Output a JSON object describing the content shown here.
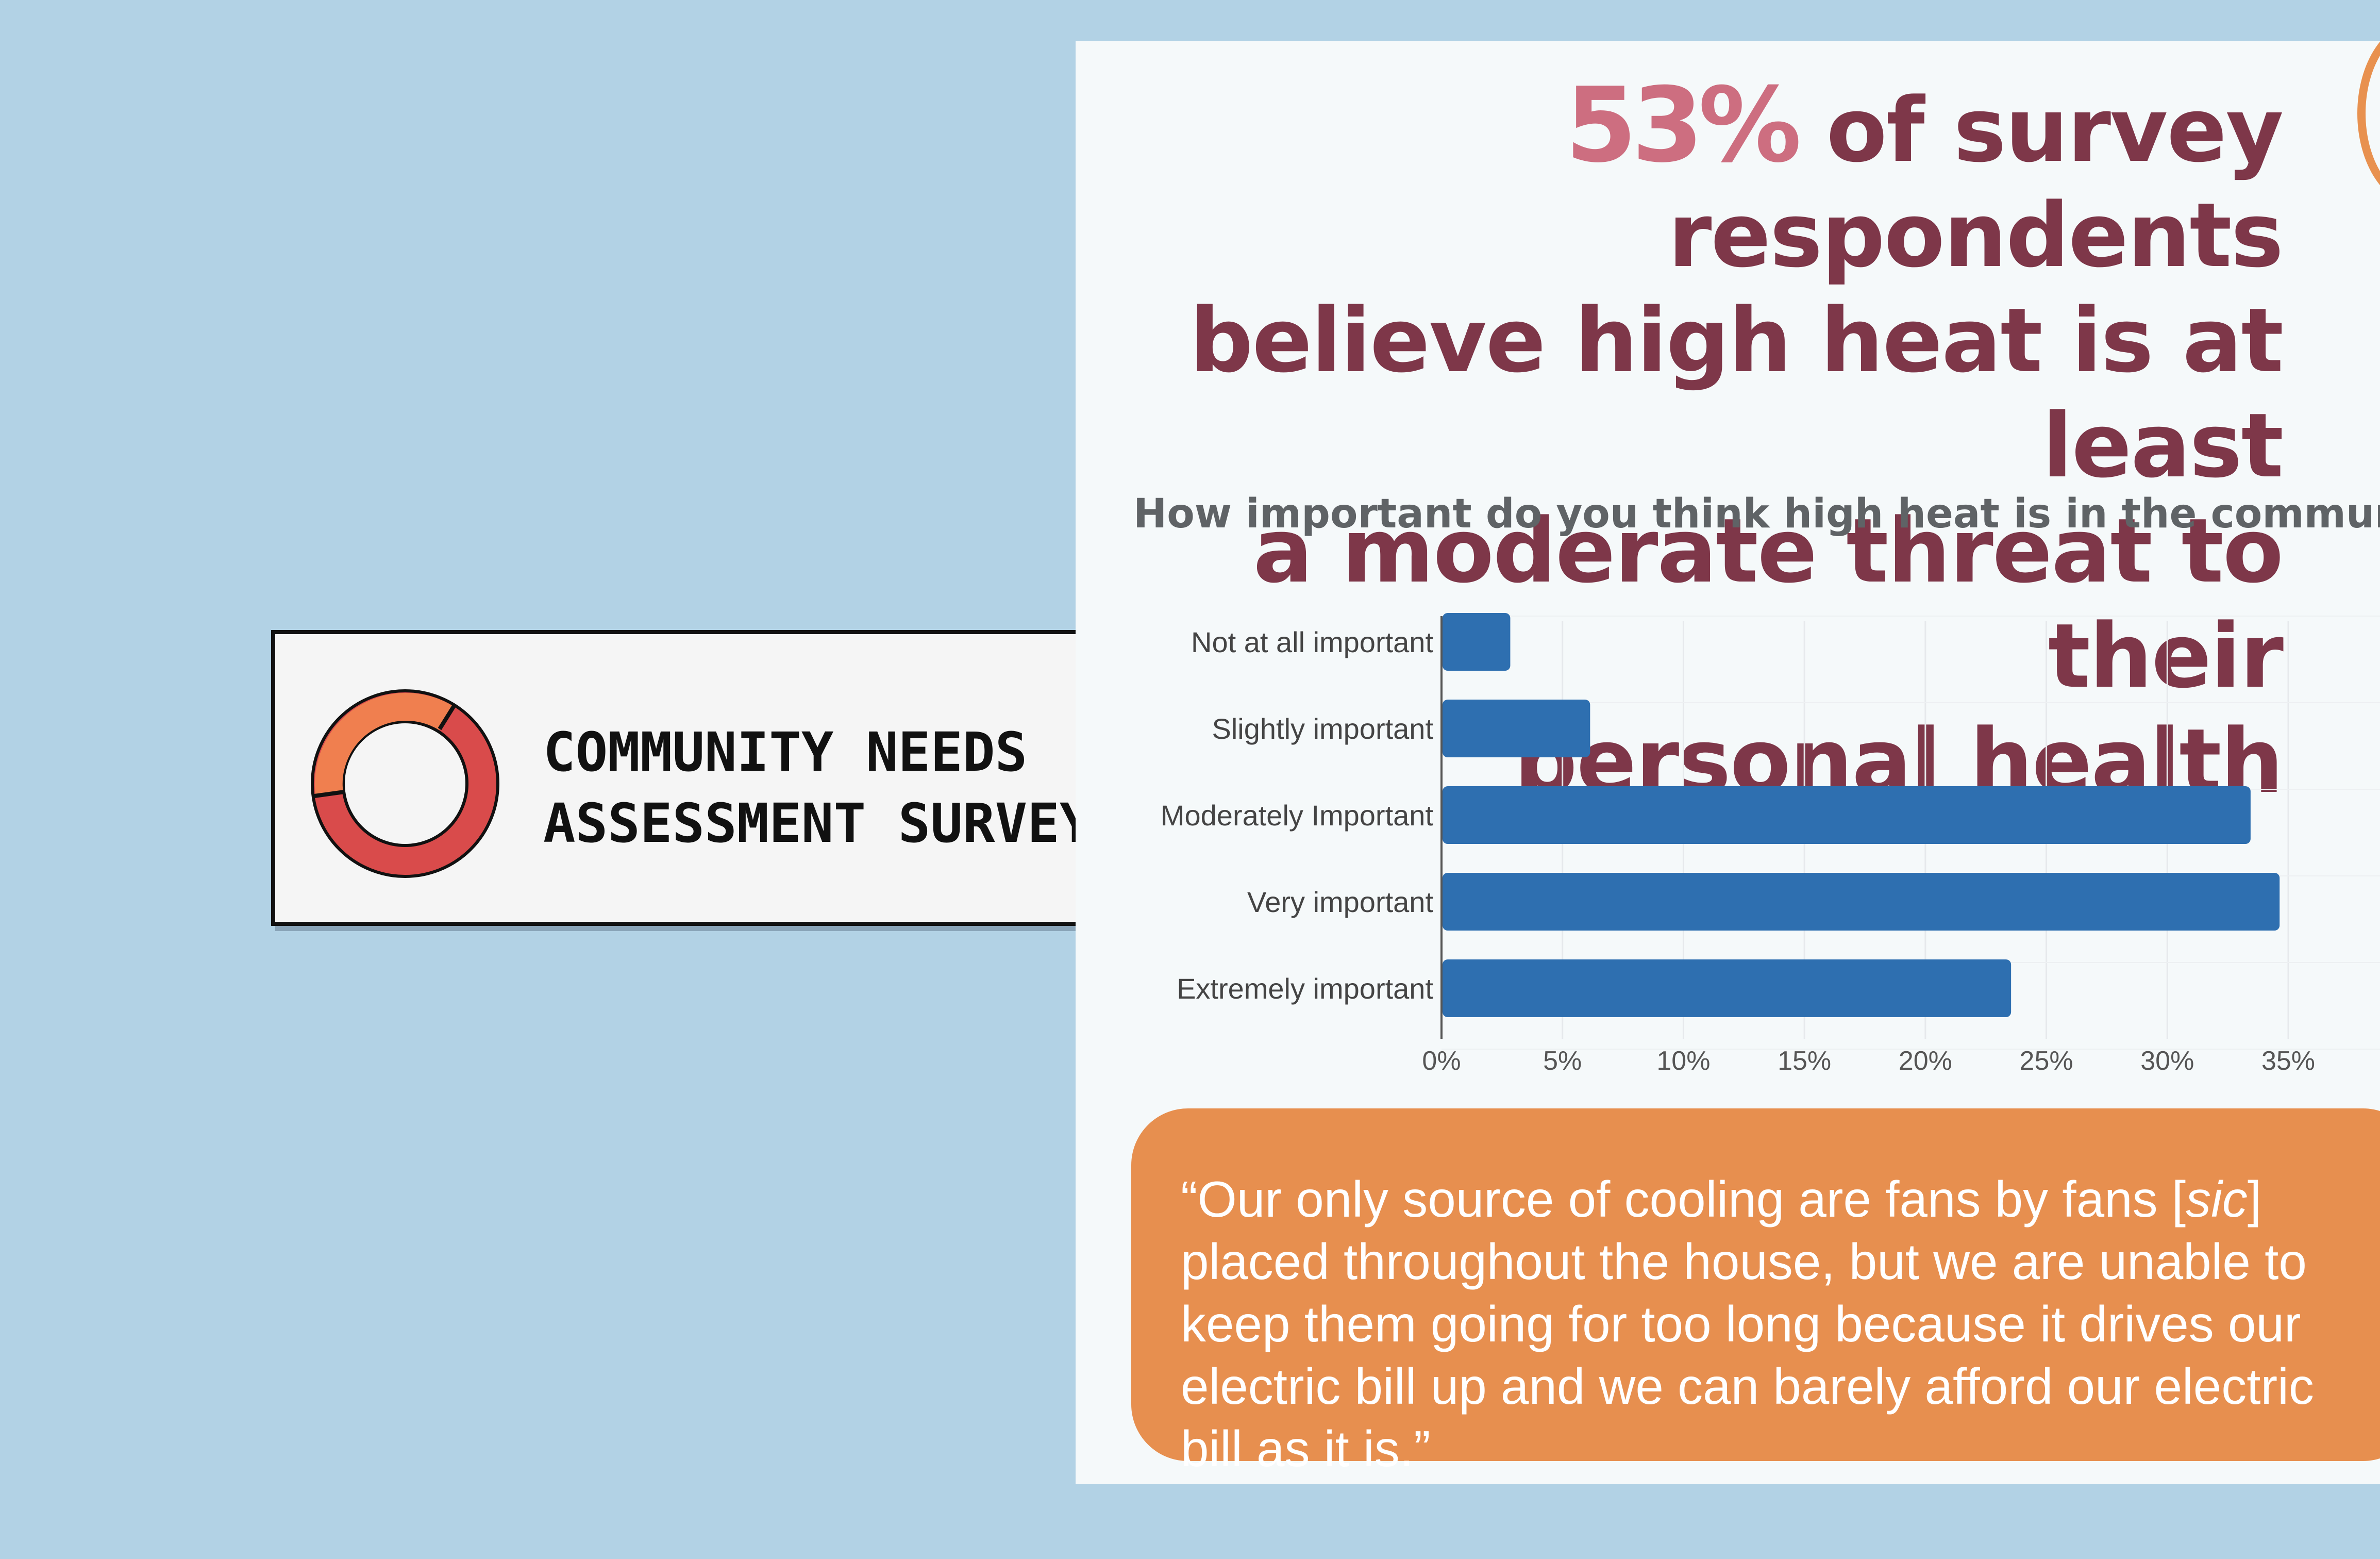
{
  "badge": {
    "line1": "COMMUNITY NEEDS",
    "line2": "ASSESSMENT SURVEYS",
    "icon": "donut-chart-icon",
    "colors": {
      "main": "#d94b4b",
      "accent": "#f07f4f"
    }
  },
  "headline": {
    "percent": "53%",
    "line1_rest": " of survey respondents",
    "line2": "believe high heat is at least",
    "line3": "a moderate threat to their",
    "line4": "personal health"
  },
  "chart_data": {
    "type": "bar",
    "orientation": "horizontal",
    "title": "How important do you think high heat is in the communi",
    "categories": [
      "Not at all important",
      "Slightly important",
      "Moderately Important",
      "Very important",
      "Extremely important"
    ],
    "values": [
      2.8,
      6.1,
      33.4,
      34.6,
      23.5
    ],
    "xlim": [
      0,
      35
    ],
    "xticks": [
      "0%",
      "5%",
      "10%",
      "15%",
      "20%",
      "25%",
      "30%",
      "35%"
    ],
    "xlabel": "",
    "ylabel": "",
    "grid": true,
    "bar_color": "#2e6fb0"
  },
  "quote": {
    "part1": "“Our only source of cooling are fans by fans [",
    "sic": "sic",
    "part2": "]\nplaced throughout the house, but we are unable to\nkeep them going for too long because it drives our\nelectric bill up and we can barely afford our electric\nbill as it is.”"
  },
  "colors": {
    "background": "#b2d2e5",
    "panel": "#f5f9fa",
    "headline": "#7e3749",
    "percent": "#cd6e80",
    "quote_box": "#e78f4f"
  }
}
